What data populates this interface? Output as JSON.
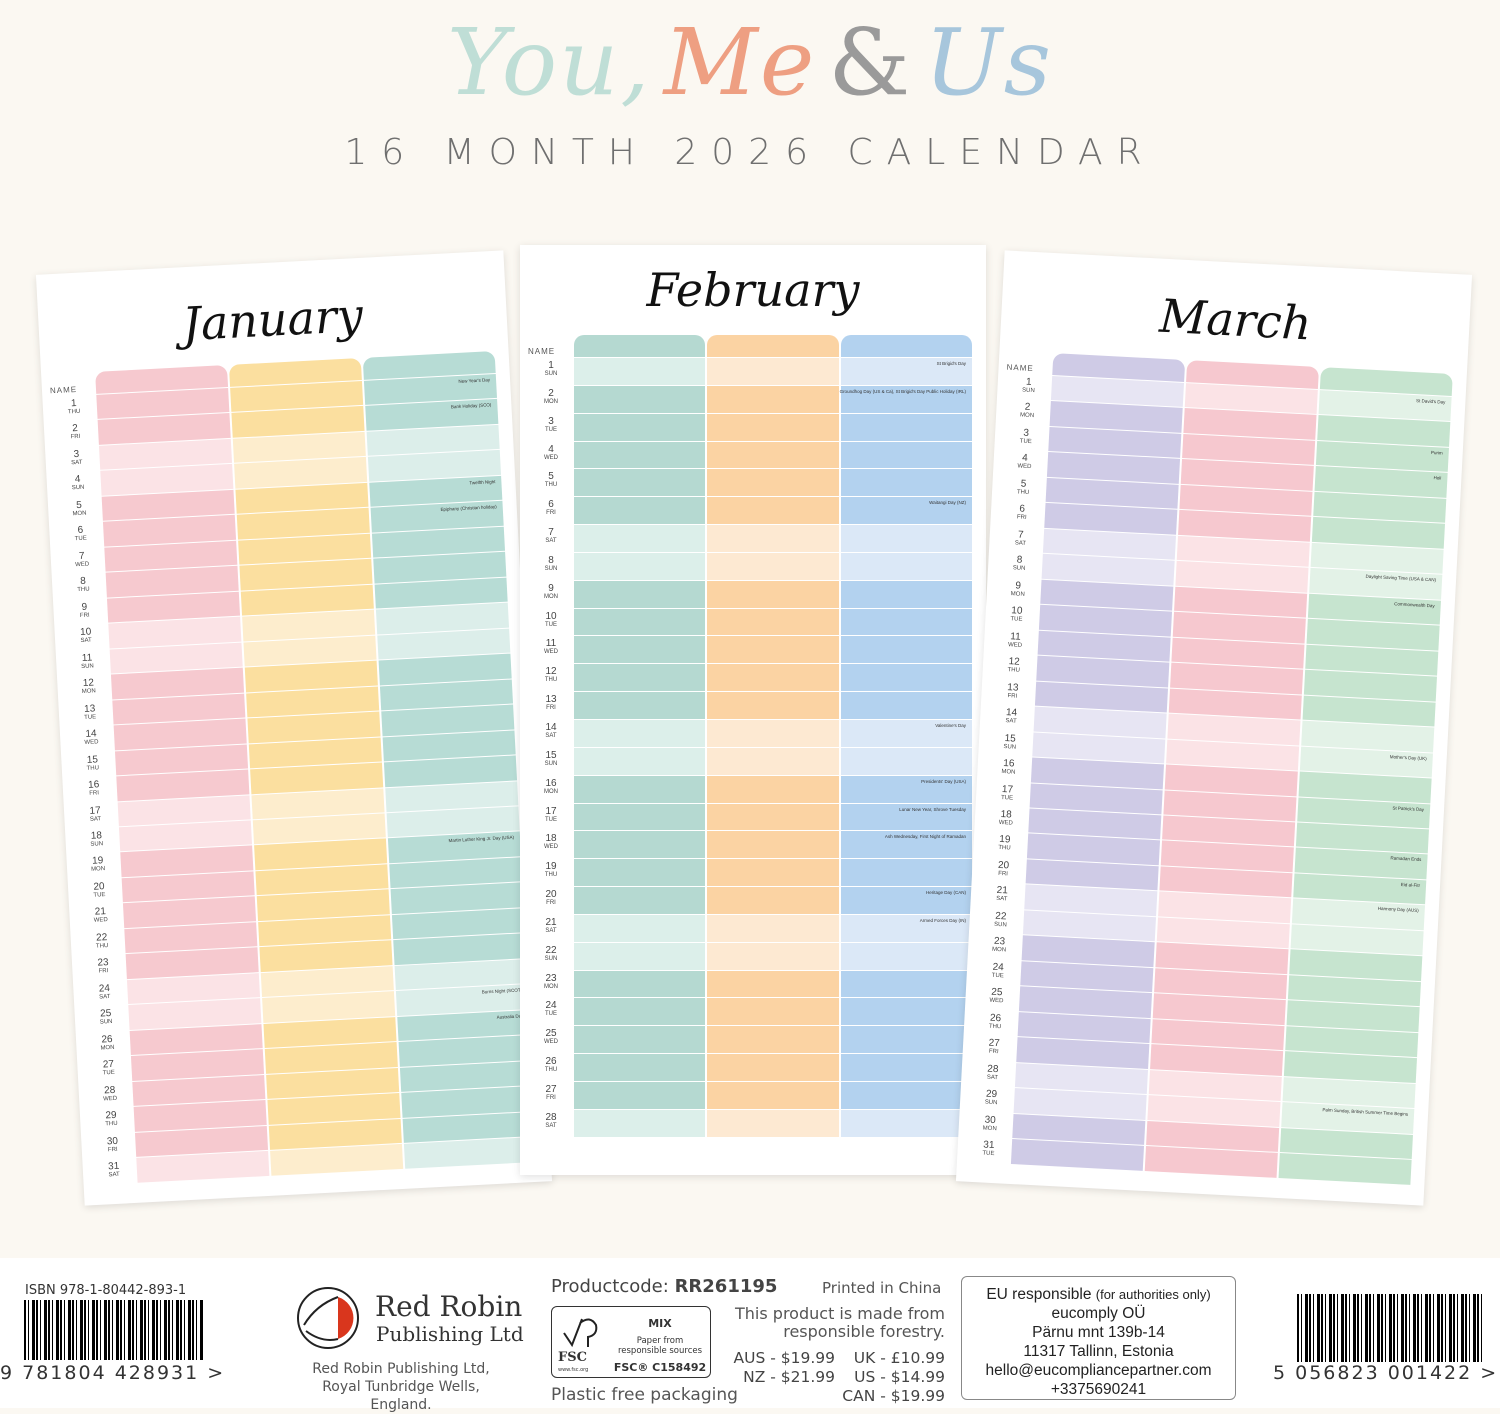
{
  "header": {
    "brand": {
      "you": "You,",
      "me": "Me",
      "amp": "&",
      "us": "Us"
    },
    "subtitle": "16 MONTH 2026 CALENDAR"
  },
  "colors": {
    "background": "#fbf8f2",
    "you": "#bfded6",
    "me": "#ee9f82",
    "amp": "#9a9a9a",
    "us": "#a7c6dc"
  },
  "months": [
    {
      "name": "January",
      "name_label": "NAME",
      "colors": [
        [
          "#f6c9cf",
          "#fbe3e6"
        ],
        [
          "#fbdf9f",
          "#fdedcd"
        ],
        [
          "#b7dcd5",
          "#dceeea"
        ]
      ],
      "days": [
        [
          "1",
          "THU"
        ],
        [
          "2",
          "FRI"
        ],
        [
          "3",
          "SAT"
        ],
        [
          "4",
          "SUN"
        ],
        [
          "5",
          "MON"
        ],
        [
          "6",
          "TUE"
        ],
        [
          "7",
          "WED"
        ],
        [
          "8",
          "THU"
        ],
        [
          "9",
          "FRI"
        ],
        [
          "10",
          "SAT"
        ],
        [
          "11",
          "SUN"
        ],
        [
          "12",
          "MON"
        ],
        [
          "13",
          "TUE"
        ],
        [
          "14",
          "WED"
        ],
        [
          "15",
          "THU"
        ],
        [
          "16",
          "FRI"
        ],
        [
          "17",
          "SAT"
        ],
        [
          "18",
          "SUN"
        ],
        [
          "19",
          "MON"
        ],
        [
          "20",
          "TUE"
        ],
        [
          "21",
          "WED"
        ],
        [
          "22",
          "THU"
        ],
        [
          "23",
          "FRI"
        ],
        [
          "24",
          "SAT"
        ],
        [
          "25",
          "SUN"
        ],
        [
          "26",
          "MON"
        ],
        [
          "27",
          "TUE"
        ],
        [
          "28",
          "WED"
        ],
        [
          "29",
          "THU"
        ],
        [
          "30",
          "FRI"
        ],
        [
          "31",
          "SAT"
        ]
      ],
      "holidays": {
        "1": "New Year's Day",
        "2": "Bank Holiday (SCO)",
        "5": "Twelfth Night",
        "6": "Epiphany (Christian holiday)",
        "19": "Martin Luther King Jr. Day (USA)",
        "25": "Burns Night (SCOT)",
        "26": "Australia Day"
      }
    },
    {
      "name": "February",
      "name_label": "NAME",
      "colors": [
        [
          "#b5d9d1",
          "#dcefea"
        ],
        [
          "#fbd3a3",
          "#fde9d2"
        ],
        [
          "#b3d2ef",
          "#dbe8f7"
        ]
      ],
      "days": [
        [
          "1",
          "SUN"
        ],
        [
          "2",
          "MON"
        ],
        [
          "3",
          "TUE"
        ],
        [
          "4",
          "WED"
        ],
        [
          "5",
          "THU"
        ],
        [
          "6",
          "FRI"
        ],
        [
          "7",
          "SAT"
        ],
        [
          "8",
          "SUN"
        ],
        [
          "9",
          "MON"
        ],
        [
          "10",
          "TUE"
        ],
        [
          "11",
          "WED"
        ],
        [
          "12",
          "THU"
        ],
        [
          "13",
          "FRI"
        ],
        [
          "14",
          "SAT"
        ],
        [
          "15",
          "SUN"
        ],
        [
          "16",
          "MON"
        ],
        [
          "17",
          "TUE"
        ],
        [
          "18",
          "WED"
        ],
        [
          "19",
          "THU"
        ],
        [
          "20",
          "FRI"
        ],
        [
          "21",
          "SAT"
        ],
        [
          "22",
          "SUN"
        ],
        [
          "23",
          "MON"
        ],
        [
          "24",
          "TUE"
        ],
        [
          "25",
          "WED"
        ],
        [
          "26",
          "THU"
        ],
        [
          "27",
          "FRI"
        ],
        [
          "28",
          "SAT"
        ]
      ],
      "holidays": {
        "1": "St Brigid's Day",
        "2": "Groundhog Day (US & Ca), St Brigid's Day Public Holiday (IRL)",
        "6": "Waitangi Day (NZ)",
        "14": "Valentine's Day",
        "16": "Presidents' Day (USA)",
        "17": "Lunar New Year, Shrove Tuesday",
        "18": "Ash Wednesday, First Night of Ramadan",
        "20": "Heritage Day (CAN)",
        "21": "Armed Forces Day (IN)"
      }
    },
    {
      "name": "March",
      "name_label": "NAME",
      "colors": [
        [
          "#cfcbe6",
          "#e7e5f3"
        ],
        [
          "#f6c8cf",
          "#fbe3e6"
        ],
        [
          "#c6e4cf",
          "#e3f2e7"
        ]
      ],
      "days": [
        [
          "1",
          "SUN"
        ],
        [
          "2",
          "MON"
        ],
        [
          "3",
          "TUE"
        ],
        [
          "4",
          "WED"
        ],
        [
          "5",
          "THU"
        ],
        [
          "6",
          "FRI"
        ],
        [
          "7",
          "SAT"
        ],
        [
          "8",
          "SUN"
        ],
        [
          "9",
          "MON"
        ],
        [
          "10",
          "TUE"
        ],
        [
          "11",
          "WED"
        ],
        [
          "12",
          "THU"
        ],
        [
          "13",
          "FRI"
        ],
        [
          "14",
          "SAT"
        ],
        [
          "15",
          "SUN"
        ],
        [
          "16",
          "MON"
        ],
        [
          "17",
          "TUE"
        ],
        [
          "18",
          "WED"
        ],
        [
          "19",
          "THU"
        ],
        [
          "20",
          "FRI"
        ],
        [
          "21",
          "SAT"
        ],
        [
          "22",
          "SUN"
        ],
        [
          "23",
          "MON"
        ],
        [
          "24",
          "TUE"
        ],
        [
          "25",
          "WED"
        ],
        [
          "26",
          "THU"
        ],
        [
          "27",
          "FRI"
        ],
        [
          "28",
          "SAT"
        ],
        [
          "29",
          "SUN"
        ],
        [
          "30",
          "MON"
        ],
        [
          "31",
          "TUE"
        ]
      ],
      "holidays": {
        "1": "St David's Day",
        "3": "Purim",
        "4": "Holi",
        "8": "Daylight Saving Time (USA & CAN)",
        "9": "Commonwealth Day",
        "15": "Mother's Day (UK)",
        "17": "St Patrick's Day",
        "19": "Ramadan Ends",
        "20": "Eid al-Fitr",
        "21": "Harmony Day (AUS)",
        "29": "Palm Sunday, British Summer Time Begins"
      }
    }
  ],
  "footer": {
    "isbn": "ISBN 978-1-80442-893-1",
    "isbn_digits": "9 781804 428931 >",
    "publisher_name": "Red Robin",
    "publisher_sub": "Publishing Ltd",
    "publisher_address_1": "Red Robin Publishing Ltd,",
    "publisher_address_2": "Royal Tunbridge Wells, England.",
    "productcode_label": "Productcode:",
    "productcode": "RR261195",
    "printed": "Printed in China",
    "fsc": {
      "mix": "MIX",
      "line1": "Paper from",
      "line2": "responsible sources",
      "code": "FSC® C158492",
      "brand": "FSC",
      "url": "www.fsc.org"
    },
    "plastic": "Plastic free packaging",
    "forestry_1": "This product is made from",
    "forestry_2": "responsible forestry.",
    "prices": [
      "AUS - $19.99",
      "UK - £10.99",
      "NZ - $21.99",
      "US - $14.99",
      "CAN - $19.99"
    ],
    "eu": {
      "title": "EU responsible",
      "title_note": "(for authorities only)",
      "lines": [
        "eucomply OÜ",
        "Pärnu mnt 139b-14",
        "11317 Tallinn, Estonia",
        "hello@eucompliancepartner.com",
        "+3375690241"
      ]
    },
    "ean_digits": "5 056823 001422 >"
  }
}
